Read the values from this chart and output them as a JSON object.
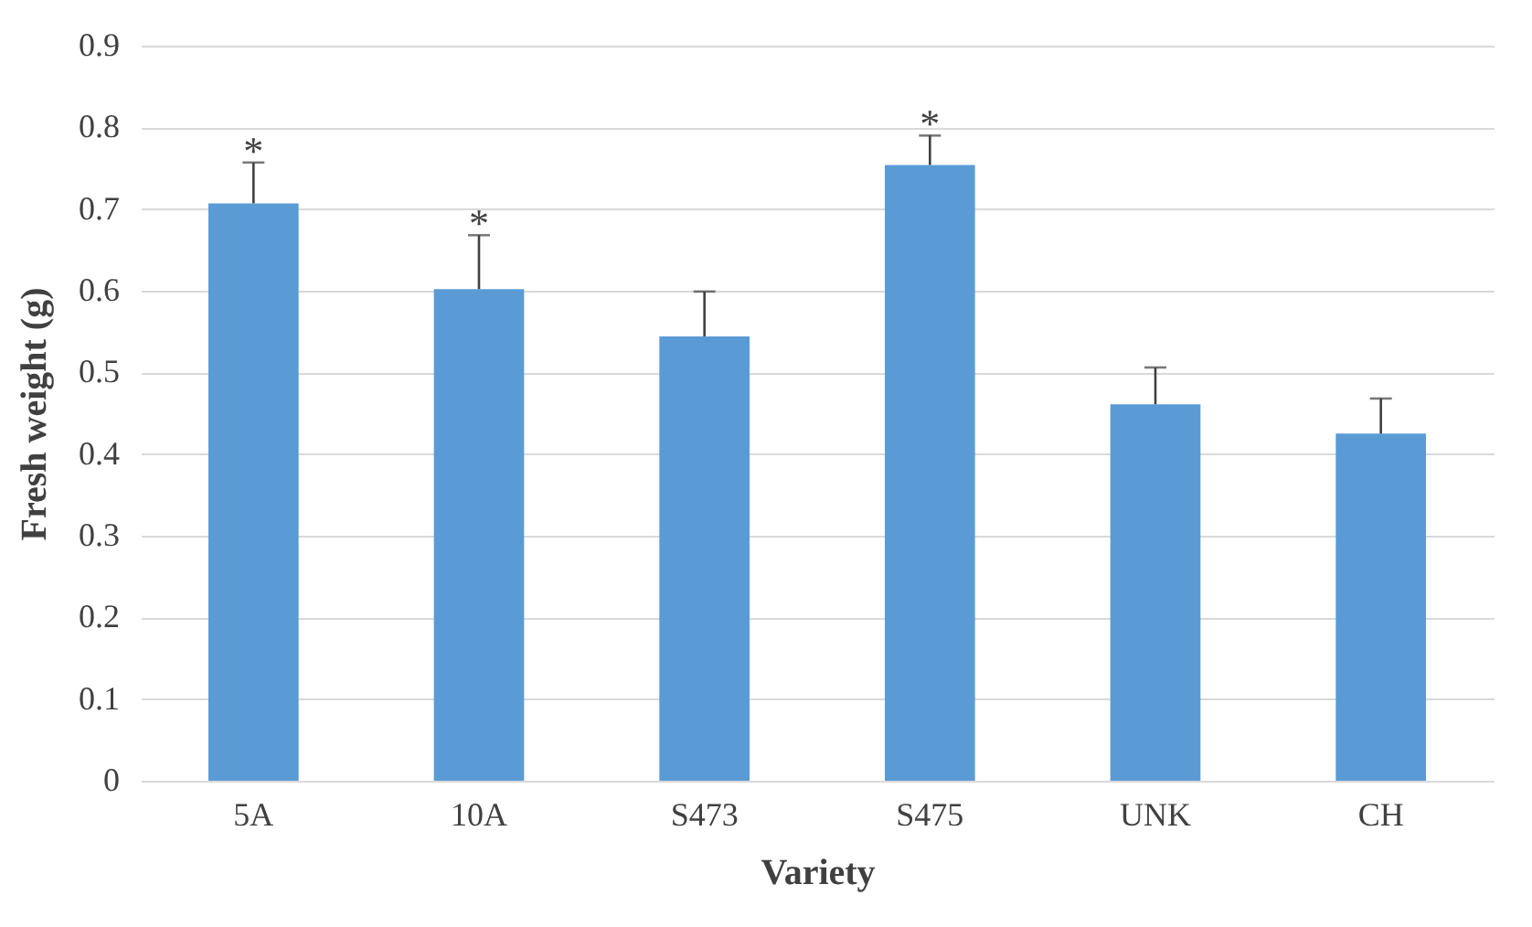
{
  "chart_data": {
    "type": "bar",
    "xlabel": "Variety",
    "ylabel": "Fresh weight (g)",
    "categories": [
      "5A",
      "10A",
      "S473",
      "S475",
      "UNK",
      "CH"
    ],
    "values": [
      0.707,
      0.602,
      0.544,
      0.754,
      0.461,
      0.425
    ],
    "errors": [
      [
        0.707,
        0.757
      ],
      [
        0.602,
        0.668
      ],
      [
        0.544,
        0.599
      ],
      [
        0.754,
        0.79
      ],
      [
        0.461,
        0.506
      ],
      [
        0.425,
        0.468
      ]
    ],
    "value_labels": [
      "*",
      "*",
      null,
      "*",
      null,
      null
    ],
    "color": "#5b9bd5",
    "ylim": [
      0,
      0.9
    ],
    "yticks": [
      0,
      0.1,
      0.2,
      0.3,
      0.4,
      0.5,
      0.6,
      0.7,
      0.8,
      0.9
    ],
    "grid": "y"
  }
}
